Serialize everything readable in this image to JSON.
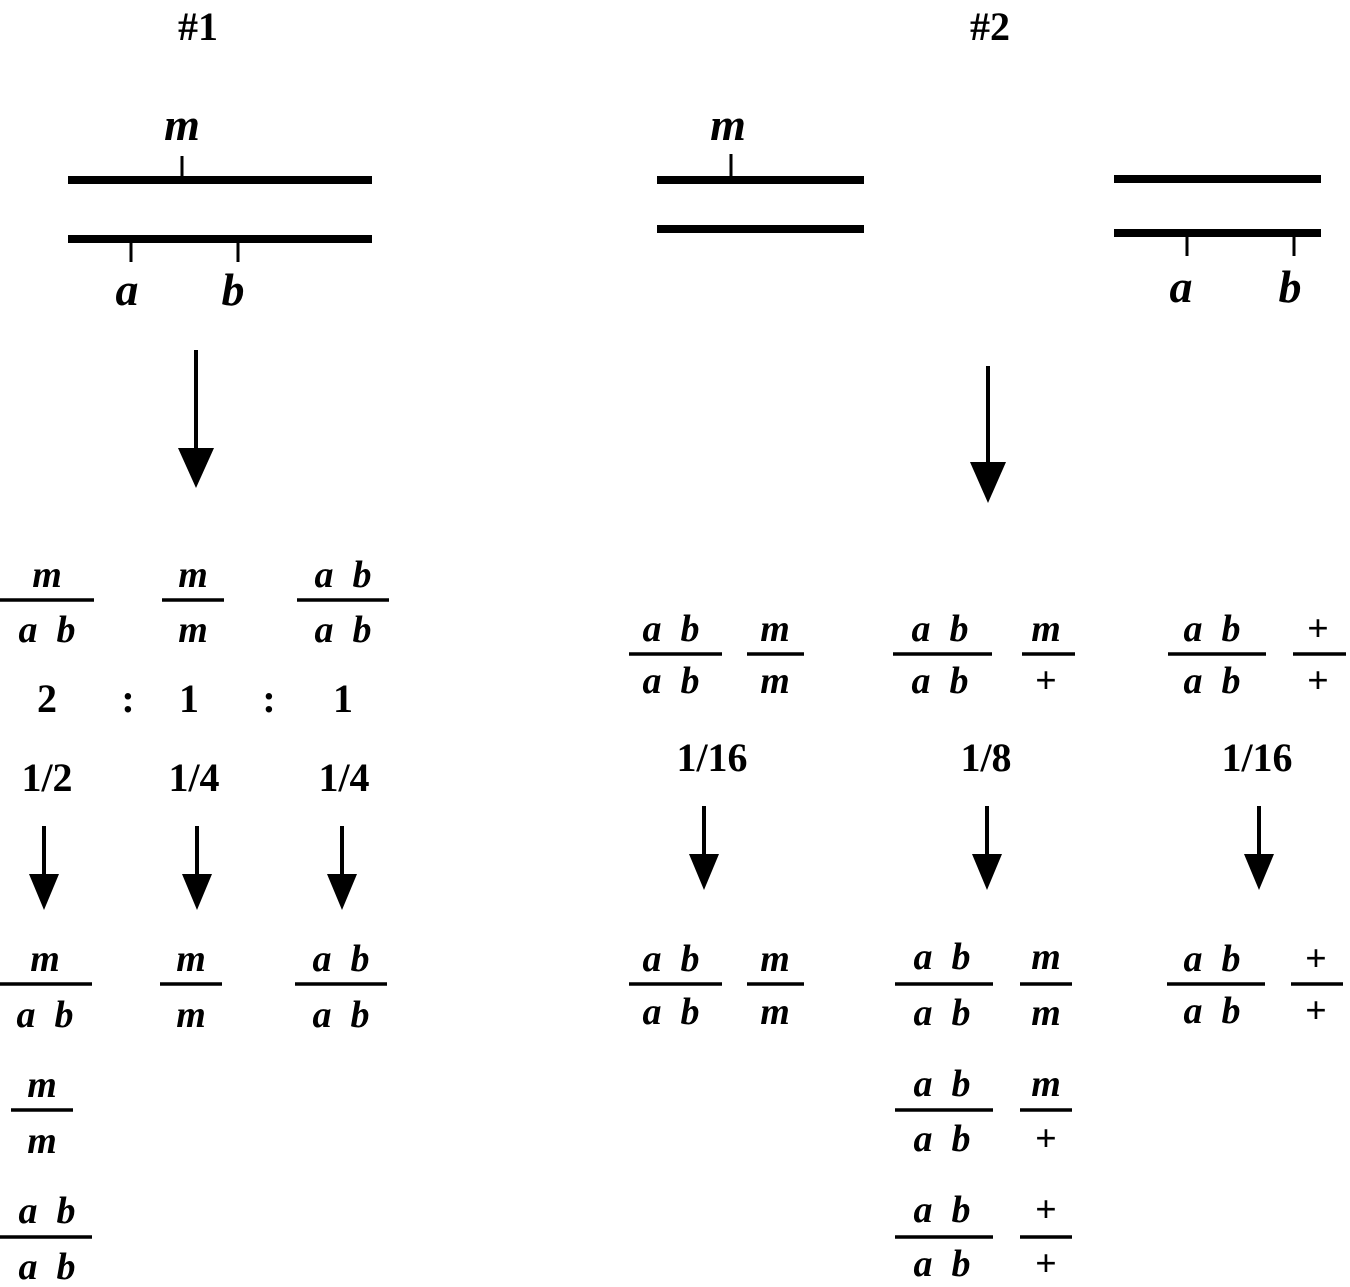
{
  "panel1": {
    "title": "#1",
    "chromosome_top_label": "m",
    "chromosome_bottom_labels": [
      "a",
      "b"
    ],
    "genotypes": [
      {
        "top": "m",
        "bottom": "a  b"
      },
      {
        "top": "m",
        "bottom": "m"
      },
      {
        "top": "a  b",
        "bottom": "a  b"
      }
    ],
    "ratio": [
      "2",
      ":",
      "1",
      ":",
      "1"
    ],
    "fractions": [
      "1/2",
      "1/4",
      "1/4"
    ],
    "offspring": [
      [
        {
          "top": "m",
          "bottom": "a  b"
        },
        {
          "top": "m",
          "bottom": "m"
        },
        {
          "top": "a  b",
          "bottom": "a  b"
        }
      ],
      [
        {
          "top": "m",
          "bottom": "m"
        }
      ],
      [
        {
          "top": "a  b",
          "bottom": "a  b"
        }
      ]
    ]
  },
  "panel2": {
    "title": "#2",
    "chromosome_left_label": "m",
    "chromosome_right_labels": [
      "a",
      "b"
    ],
    "genotypes": [
      [
        {
          "top": "a  b",
          "bottom": "a  b"
        },
        {
          "top": "m",
          "bottom": "m"
        }
      ],
      [
        {
          "top": "a  b",
          "bottom": "a  b"
        },
        {
          "top": "m",
          "bottom": "+"
        }
      ],
      [
        {
          "top": "a  b",
          "bottom": "a  b"
        },
        {
          "top": "+",
          "bottom": "+"
        }
      ]
    ],
    "fractions": [
      "1/16",
      "1/8",
      "1/16"
    ],
    "offspring": [
      [
        [
          {
            "top": "a  b",
            "bottom": "a  b"
          },
          {
            "top": "m",
            "bottom": "m"
          }
        ]
      ],
      [
        [
          {
            "top": "a  b",
            "bottom": "a  b"
          },
          {
            "top": "m",
            "bottom": "m"
          }
        ],
        [
          {
            "top": "a  b",
            "bottom": "a  b"
          },
          {
            "top": "m",
            "bottom": "+"
          }
        ],
        [
          {
            "top": "a  b",
            "bottom": "a  b"
          },
          {
            "top": "+",
            "bottom": "+"
          }
        ]
      ],
      [
        [
          {
            "top": "a  b",
            "bottom": "a  b"
          },
          {
            "top": "+",
            "bottom": "+"
          }
        ]
      ]
    ]
  }
}
